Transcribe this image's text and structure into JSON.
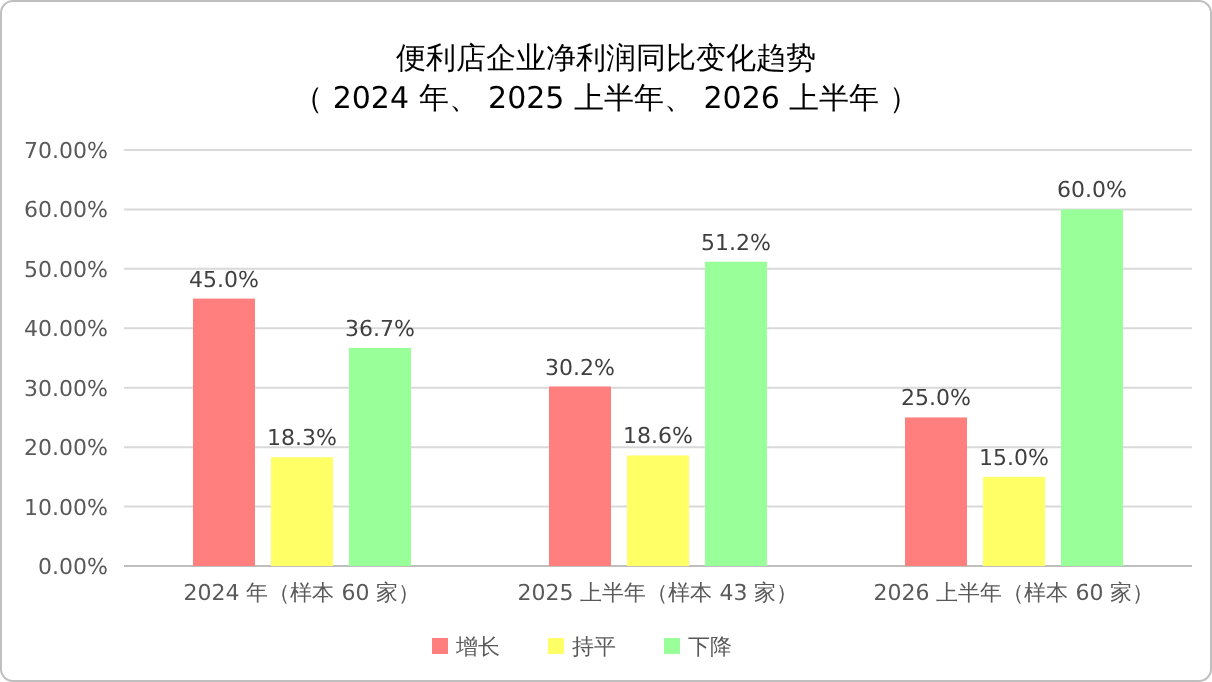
{
  "chart_data": {
    "type": "bar",
    "title": "便利店企业净利润同比变化趋势",
    "subtitle": "（ 2024 年、 2025 上半年、 2026 上半年 ）",
    "categories": [
      "2024 年（样本 60 家）",
      "2025 上半年（样本 43 家）",
      "2026 上半年（样本 60 家）"
    ],
    "series": [
      {
        "name": "增长",
        "color": "#ff7f7f",
        "values": [
          45.0,
          30.2,
          25.0
        ],
        "value_labels": [
          "45.0%",
          "30.2%",
          "25.0%"
        ]
      },
      {
        "name": "持平",
        "color": "#ffff66",
        "values": [
          18.3,
          18.6,
          15.0
        ],
        "value_labels": [
          "18.3%",
          "18.6%",
          "15.0%"
        ]
      },
      {
        "name": "下降",
        "color": "#99ff99",
        "values": [
          36.7,
          51.2,
          60.0
        ],
        "value_labels": [
          "36.7%",
          "51.2%",
          "60.0%"
        ]
      }
    ],
    "ylim": [
      0,
      70
    ],
    "yticks": [
      {
        "value": 0,
        "label": "0.00%"
      },
      {
        "value": 10,
        "label": "10.00%"
      },
      {
        "value": 20,
        "label": "20.00%"
      },
      {
        "value": 30,
        "label": "30.00%"
      },
      {
        "value": 40,
        "label": "40.00%"
      },
      {
        "value": 50,
        "label": "50.00%"
      },
      {
        "value": 60,
        "label": "60.00%"
      },
      {
        "value": 70,
        "label": "70.00%"
      }
    ],
    "grid": "y",
    "legend": "bottom"
  }
}
